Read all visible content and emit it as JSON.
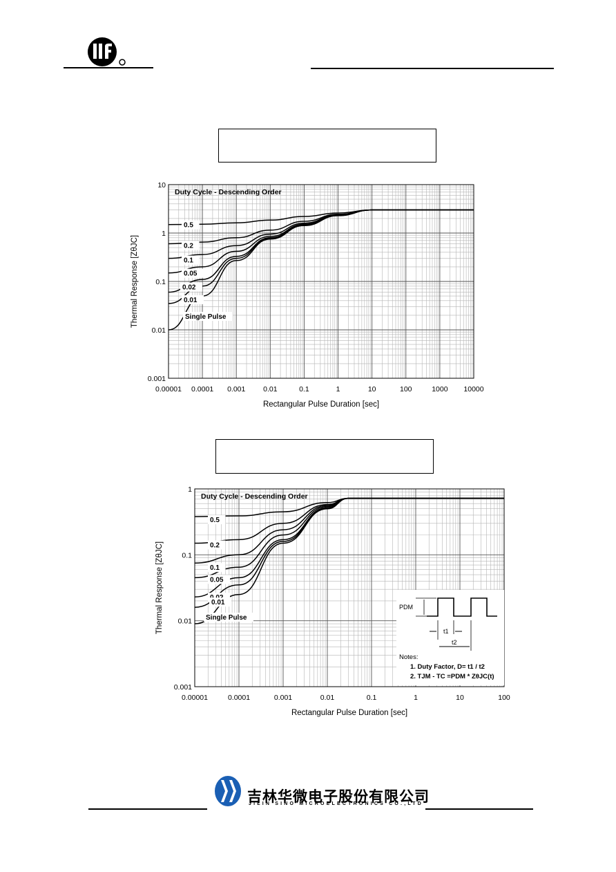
{
  "colors": {
    "ink": "#000000",
    "grid": "#b4b4b4",
    "paper": "#ffffff"
  },
  "header": {
    "logo_icon": "jsm-logo-icon"
  },
  "footer": {
    "logo_icon": "jilin-sino-logo-icon",
    "company_cn": "吉林华微电子股份有限公司",
    "company_en": "JILIN SINO MICROELECTRONICS CO.,LTD"
  },
  "chart_data": [
    {
      "type": "line",
      "title": "",
      "xlabel": "Rectangular Pulse Duration [sec]",
      "ylabel": "Thermal Response [ZθJC]",
      "x_scale": "log",
      "y_scale": "log",
      "xlim": [
        1e-05,
        10000
      ],
      "ylim": [
        0.001,
        10
      ],
      "x_ticks": [
        "0.00001",
        "0.0001",
        "0.001",
        "0.01",
        "0.1",
        "1",
        "10",
        "100",
        "1000",
        "10000"
      ],
      "y_ticks": [
        "0.001",
        "0.01",
        "0.1",
        "1",
        "10"
      ],
      "grid": true,
      "legend_title": "Duty Cycle - Descending Order",
      "series": [
        {
          "name": "0.5",
          "x": [
            1e-05,
            0.0001,
            0.001,
            0.01,
            0.1,
            1,
            10,
            10000
          ],
          "y": [
            1.5,
            1.52,
            1.62,
            1.85,
            2.2,
            2.6,
            3.0,
            3.0
          ]
        },
        {
          "name": "0.2",
          "x": [
            1e-05,
            0.0001,
            0.001,
            0.01,
            0.1,
            1,
            10,
            10000
          ],
          "y": [
            0.6,
            0.65,
            0.8,
            1.15,
            1.75,
            2.45,
            3.0,
            3.0
          ]
        },
        {
          "name": "0.1",
          "x": [
            1e-05,
            0.0001,
            0.001,
            0.01,
            0.1,
            1,
            10,
            10000
          ],
          "y": [
            0.3,
            0.36,
            0.55,
            0.95,
            1.6,
            2.4,
            3.0,
            3.0
          ]
        },
        {
          "name": "0.05",
          "x": [
            1e-05,
            0.0001,
            0.001,
            0.01,
            0.1,
            1,
            10,
            10000
          ],
          "y": [
            0.15,
            0.2,
            0.42,
            0.85,
            1.52,
            2.35,
            3.0,
            3.0
          ]
        },
        {
          "name": "0.02",
          "x": [
            1e-05,
            0.0001,
            0.001,
            0.01,
            0.1,
            1,
            10,
            10000
          ],
          "y": [
            0.06,
            0.11,
            0.33,
            0.8,
            1.48,
            2.32,
            3.0,
            3.0
          ]
        },
        {
          "name": "0.01",
          "x": [
            1e-05,
            0.0001,
            0.001,
            0.01,
            0.1,
            1,
            10,
            10000
          ],
          "y": [
            0.035,
            0.08,
            0.3,
            0.78,
            1.45,
            2.3,
            3.0,
            3.0
          ]
        },
        {
          "name": "Single Pulse",
          "x": [
            1e-05,
            0.0001,
            0.001,
            0.01,
            0.1,
            1,
            10,
            10000
          ],
          "y": [
            0.01,
            0.05,
            0.27,
            0.75,
            1.42,
            2.28,
            3.0,
            3.0
          ]
        }
      ]
    },
    {
      "type": "line",
      "title": "",
      "xlabel": "Rectangular Pulse Duration [sec]",
      "ylabel": "Thermal Response [ZθJC]",
      "x_scale": "log",
      "y_scale": "log",
      "xlim": [
        1e-05,
        100
      ],
      "ylim": [
        0.001,
        1
      ],
      "x_ticks": [
        "0.00001",
        "0.0001",
        "0.001",
        "0.01",
        "0.1",
        "1",
        "10",
        "100"
      ],
      "y_ticks": [
        "0.001",
        "0.01",
        "0.1",
        "1"
      ],
      "grid": true,
      "legend_title": "Duty Cycle - Descending Order",
      "series": [
        {
          "name": "0.5",
          "x": [
            1e-05,
            0.0001,
            0.001,
            0.01,
            0.03,
            100
          ],
          "y": [
            0.38,
            0.39,
            0.45,
            0.62,
            0.72,
            0.72
          ]
        },
        {
          "name": "0.2",
          "x": [
            1e-05,
            0.0001,
            0.001,
            0.01,
            0.03,
            100
          ],
          "y": [
            0.15,
            0.17,
            0.3,
            0.58,
            0.72,
            0.72
          ]
        },
        {
          "name": "0.1",
          "x": [
            1e-05,
            0.0001,
            0.001,
            0.01,
            0.03,
            100
          ],
          "y": [
            0.075,
            0.1,
            0.24,
            0.56,
            0.72,
            0.72
          ]
        },
        {
          "name": "0.05",
          "x": [
            1e-05,
            0.0001,
            0.001,
            0.01,
            0.03,
            100
          ],
          "y": [
            0.045,
            0.065,
            0.2,
            0.54,
            0.72,
            0.72
          ]
        },
        {
          "name": "0.02",
          "x": [
            1e-05,
            0.0001,
            0.001,
            0.01,
            0.03,
            100
          ],
          "y": [
            0.023,
            0.045,
            0.17,
            0.52,
            0.72,
            0.72
          ]
        },
        {
          "name": "0.01",
          "x": [
            1e-05,
            0.0001,
            0.001,
            0.01,
            0.03,
            100
          ],
          "y": [
            0.016,
            0.035,
            0.16,
            0.51,
            0.72,
            0.72
          ]
        },
        {
          "name": "Single Pulse",
          "x": [
            1e-05,
            0.0001,
            0.001,
            0.01,
            0.03,
            100
          ],
          "y": [
            0.009,
            0.025,
            0.15,
            0.5,
            0.72,
            0.72
          ]
        }
      ],
      "inset": {
        "pulse_label": "PDM",
        "t1_label": "t1",
        "t2_label": "t2",
        "notes_title": "Notes:",
        "notes": [
          "1. Duty Factor,  D= t1 / t2",
          "2. TJM - TC  =PDM * ZθJC(t)"
        ]
      }
    }
  ]
}
